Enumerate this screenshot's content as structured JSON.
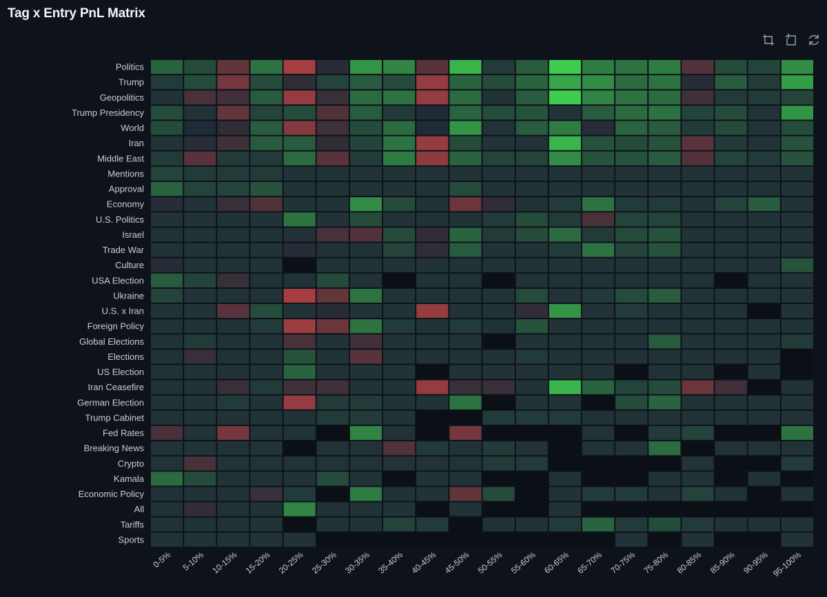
{
  "title": "Tag x Entry PnL Matrix",
  "toolbar": [
    {
      "name": "data-zoom-icon"
    },
    {
      "name": "zoom-reset-icon"
    },
    {
      "name": "restore-icon"
    }
  ],
  "chart_data": {
    "type": "heatmap",
    "title": "Tag x Entry PnL Matrix",
    "xlabel": "",
    "ylabel": "",
    "x_categories": [
      "0-5%",
      "5-10%",
      "10-15%",
      "15-20%",
      "20-25%",
      "25-30%",
      "30-35%",
      "35-40%",
      "40-45%",
      "45-50%",
      "50-55%",
      "55-60%",
      "60-65%",
      "65-70%",
      "70-75%",
      "75-80%",
      "80-85%",
      "85-90%",
      "90-95%",
      "95-100%"
    ],
    "y_categories": [
      "Politics",
      "Trump",
      "Geopolitics",
      "Trump Presidency",
      "World",
      "Iran",
      "Middle East",
      "Mentions",
      "Approval",
      "Economy",
      "U.S. Politics",
      "Israel",
      "Trade War",
      "Culture",
      "USA Election",
      "Ukraine",
      "U.S. x Iran",
      "Foreign Policy",
      "Global Elections",
      "Elections",
      "US Election",
      "Iran Ceasefire",
      "German Election",
      "Trump Cabinet",
      "Fed Rates",
      "Breaking News",
      "Crypto",
      "Kamala",
      "Economic Policy",
      "All",
      "Tariffs",
      "Sports"
    ],
    "value_scale": "relative PnL, -1 (red loss) to +1 (green profit); null = no data",
    "colors": {
      "positive": "#3fcc4f",
      "negative": "#c64343",
      "neutral": "#1f2b36",
      "empty": "#0b0f16",
      "grid": "#0d121b"
    },
    "values": [
      [
        0.35,
        0.2,
        -0.4,
        0.45,
        -0.8,
        -0.05,
        0.65,
        0.55,
        -0.35,
        0.85,
        0.1,
        0.3,
        1.0,
        0.5,
        0.45,
        0.5,
        -0.3,
        0.2,
        0.15,
        0.6
      ],
      [
        0.1,
        0.2,
        -0.5,
        0.2,
        -0.1,
        0.15,
        0.3,
        0.2,
        -0.7,
        0.35,
        0.2,
        0.35,
        0.75,
        0.6,
        0.4,
        0.45,
        -0.05,
        0.3,
        0.1,
        0.7
      ],
      [
        0.05,
        -0.25,
        -0.2,
        0.3,
        -0.7,
        -0.15,
        0.4,
        0.45,
        -0.7,
        0.4,
        0.05,
        0.3,
        1.0,
        0.55,
        0.45,
        0.4,
        -0.2,
        0.1,
        0.1,
        0.15
      ],
      [
        0.2,
        0.05,
        -0.4,
        0.15,
        0.2,
        -0.3,
        0.3,
        0.1,
        0.0,
        0.35,
        0.2,
        0.25,
        0.05,
        0.3,
        0.4,
        0.45,
        0.15,
        0.2,
        0.05,
        0.65
      ],
      [
        0.2,
        0.0,
        -0.1,
        0.3,
        -0.6,
        -0.2,
        0.2,
        0.4,
        0.0,
        0.65,
        0.05,
        0.3,
        0.5,
        -0.05,
        0.35,
        0.3,
        0.1,
        0.2,
        0.05,
        0.2
      ],
      [
        0.05,
        -0.05,
        -0.2,
        0.3,
        0.3,
        -0.1,
        0.15,
        0.45,
        -0.7,
        0.2,
        0.05,
        0.05,
        0.85,
        0.25,
        0.2,
        0.25,
        -0.35,
        0.1,
        0.05,
        0.25
      ],
      [
        0.1,
        -0.35,
        0.1,
        0.1,
        0.4,
        -0.35,
        0.1,
        0.5,
        -0.65,
        0.35,
        0.15,
        0.15,
        0.6,
        0.25,
        0.25,
        0.3,
        -0.3,
        0.15,
        0.1,
        0.25
      ],
      [
        0.15,
        0.1,
        0.1,
        0.1,
        0.05,
        0.05,
        0.05,
        0.05,
        0.05,
        0.05,
        0.05,
        0.05,
        0.05,
        0.05,
        0.05,
        0.05,
        0.05,
        0.05,
        0.05,
        0.05
      ],
      [
        0.35,
        0.15,
        0.15,
        0.25,
        0.05,
        0.05,
        0.05,
        0.05,
        0.05,
        0.2,
        0.05,
        0.05,
        0.05,
        0.05,
        0.05,
        0.05,
        0.05,
        0.05,
        0.05,
        0.05
      ],
      [
        -0.05,
        0.05,
        -0.15,
        -0.3,
        0.05,
        0.05,
        0.6,
        0.2,
        0.05,
        -0.45,
        -0.1,
        0.05,
        0.1,
        0.45,
        0.1,
        0.1,
        0.05,
        0.15,
        0.3,
        0.05
      ],
      [
        0.05,
        0.05,
        0.05,
        0.05,
        0.45,
        0.05,
        0.2,
        0.05,
        0.05,
        0.05,
        0.1,
        0.2,
        0.1,
        -0.25,
        0.15,
        0.15,
        0.05,
        0.05,
        0.05,
        0.05
      ],
      [
        0.05,
        0.05,
        0.05,
        0.05,
        0.05,
        -0.25,
        -0.3,
        0.2,
        -0.1,
        0.35,
        0.1,
        0.2,
        0.4,
        0.1,
        0.2,
        0.25,
        0.05,
        0.05,
        0.05,
        0.05
      ],
      [
        0.05,
        0.05,
        0.05,
        0.05,
        -0.05,
        0.05,
        0.05,
        0.15,
        -0.1,
        0.3,
        0.05,
        0.05,
        0.1,
        0.45,
        0.15,
        0.25,
        0.05,
        0.05,
        0.05,
        0.05
      ],
      [
        -0.05,
        0.05,
        0.05,
        0.05,
        null,
        0.05,
        0.05,
        0.05,
        0.05,
        0.05,
        0.05,
        0.05,
        0.05,
        0.05,
        0.05,
        0.05,
        0.05,
        0.05,
        0.05,
        0.25
      ],
      [
        0.3,
        0.15,
        -0.15,
        0.05,
        0.05,
        0.2,
        0.05,
        null,
        0.05,
        0.05,
        null,
        0.05,
        0.05,
        0.05,
        0.05,
        0.05,
        0.05,
        null,
        0.05,
        0.05
      ],
      [
        0.15,
        0.05,
        0.05,
        0.05,
        -0.8,
        -0.4,
        0.45,
        0.05,
        0.05,
        0.05,
        0.05,
        0.2,
        0.05,
        0.1,
        0.2,
        0.3,
        0.05,
        0.05,
        0.05,
        0.05
      ],
      [
        0.05,
        0.05,
        -0.35,
        0.2,
        0.05,
        -0.05,
        0.05,
        0.05,
        -0.7,
        0.05,
        0.05,
        -0.1,
        0.65,
        0.05,
        0.1,
        0.05,
        0.05,
        0.05,
        null,
        0.05
      ],
      [
        0.05,
        0.05,
        0.05,
        0.1,
        -0.75,
        -0.45,
        0.45,
        0.1,
        0.05,
        0.1,
        0.05,
        0.25,
        0.05,
        0.05,
        0.05,
        0.05,
        0.05,
        0.05,
        0.05,
        0.05
      ],
      [
        0.05,
        0.1,
        0.05,
        0.05,
        -0.25,
        0.05,
        -0.2,
        0.05,
        0.05,
        0.05,
        null,
        0.05,
        0.05,
        0.05,
        0.05,
        0.3,
        0.05,
        0.05,
        0.05,
        0.1
      ],
      [
        0.05,
        -0.15,
        0.05,
        0.05,
        0.25,
        0.05,
        -0.35,
        0.05,
        0.05,
        0.05,
        0.05,
        0.1,
        0.05,
        0.05,
        0.05,
        0.05,
        0.05,
        0.05,
        0.05,
        null
      ],
      [
        0.05,
        0.05,
        0.05,
        0.05,
        0.35,
        0.05,
        0.05,
        0.05,
        null,
        0.05,
        0.05,
        0.05,
        0.05,
        0.05,
        null,
        0.05,
        0.05,
        null,
        0.05,
        null
      ],
      [
        0.05,
        0.05,
        -0.15,
        0.1,
        -0.2,
        -0.2,
        0.05,
        0.05,
        -0.7,
        -0.15,
        -0.15,
        0.05,
        0.85,
        0.35,
        0.15,
        0.2,
        -0.45,
        -0.2,
        null,
        0.05
      ],
      [
        0.05,
        0.05,
        0.1,
        0.05,
        -0.7,
        0.1,
        0.1,
        0.05,
        0.05,
        0.45,
        null,
        0.05,
        0.05,
        null,
        0.2,
        0.35,
        0.05,
        0.05,
        0.05,
        0.05
      ],
      [
        0.05,
        0.05,
        0.05,
        0.05,
        0.05,
        0.1,
        0.1,
        0.05,
        null,
        null,
        0.1,
        0.1,
        0.1,
        0.05,
        0.05,
        0.05,
        0.05,
        0.05,
        0.05,
        0.05
      ],
      [
        -0.25,
        0.05,
        -0.5,
        0.05,
        0.05,
        null,
        0.55,
        0.05,
        null,
        -0.5,
        null,
        null,
        null,
        0.05,
        null,
        0.1,
        0.15,
        null,
        null,
        0.45
      ],
      [
        0.05,
        0.05,
        0.05,
        0.05,
        null,
        0.05,
        0.05,
        -0.3,
        0.1,
        0.05,
        0.1,
        0.05,
        null,
        0.05,
        0.05,
        0.4,
        null,
        0.05,
        0.05,
        0.05
      ],
      [
        0.05,
        -0.25,
        0.05,
        0.05,
        0.05,
        0.05,
        0.05,
        0.05,
        0.05,
        0.05,
        0.1,
        0.1,
        null,
        null,
        null,
        null,
        0.05,
        null,
        null,
        0.1
      ],
      [
        0.4,
        0.2,
        0.05,
        0.05,
        0.05,
        0.2,
        0.05,
        null,
        0.05,
        0.05,
        null,
        null,
        0.05,
        null,
        null,
        0.05,
        0.05,
        null,
        0.05,
        null
      ],
      [
        0.05,
        0.05,
        0.05,
        -0.15,
        0.1,
        null,
        0.5,
        0.05,
        0.05,
        -0.4,
        0.2,
        null,
        0.05,
        0.1,
        0.1,
        0.05,
        0.15,
        0.05,
        null,
        0.05
      ],
      [
        0.05,
        -0.1,
        0.05,
        0.05,
        0.55,
        0.05,
        0.05,
        0.05,
        null,
        0.05,
        null,
        null,
        0.05,
        null,
        null,
        null,
        null,
        null,
        null,
        null
      ],
      [
        0.05,
        0.05,
        0.05,
        0.05,
        null,
        0.05,
        0.05,
        0.15,
        0.1,
        null,
        0.05,
        0.05,
        0.1,
        0.35,
        0.1,
        0.2,
        0.1,
        0.05,
        0.05,
        0.05
      ],
      [
        0.05,
        0.05,
        0.05,
        0.05,
        0.05,
        null,
        null,
        null,
        null,
        null,
        null,
        null,
        null,
        null,
        0.05,
        null,
        0.05,
        null,
        null,
        0.05
      ]
    ]
  }
}
